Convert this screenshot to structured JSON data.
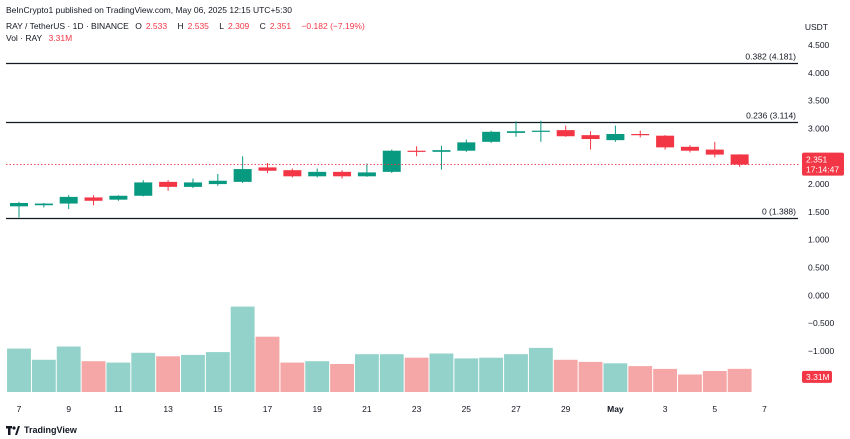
{
  "header": {
    "publisher_line": "BeInCrypto1 published on TradingView.com, May 06, 2025 12:15 UTC+5:30"
  },
  "legend": {
    "symbol": "RAY / TetherUS · 1D · BINANCE",
    "open_label": "O",
    "open_value": "2.533",
    "high_label": "H",
    "high_value": "2.535",
    "low_label": "L",
    "low_value": "2.309",
    "close_label": "C",
    "close_value": "2.351",
    "change": "−0.182 (−7.19%)",
    "vol_label": "Vol · RAY",
    "vol_value": "3.31M"
  },
  "currency": "USDT",
  "footer": {
    "brand": "TradingView"
  },
  "colors": {
    "up": "#089981",
    "down": "#f23645",
    "vol_up": "#92d2cb",
    "vol_down": "#f5a6a6",
    "fib_line": "#131722",
    "price_line": "#f23645"
  },
  "chart_data": {
    "type": "candlestick",
    "title": "RAY / TetherUS · 1D · BINANCE",
    "x_tick_labels": [
      "7",
      "9",
      "11",
      "13",
      "15",
      "17",
      "19",
      "21",
      "23",
      "25",
      "27",
      "29",
      "May",
      "3",
      "5",
      "7"
    ],
    "y_tick_labels": [
      "4.500",
      "4.000",
      "3.500",
      "3.000",
      "2.500",
      "2.000",
      "1.500",
      "1.000",
      "0.500",
      "0.000",
      "−0.500",
      "−1.000"
    ],
    "y_ticks": [
      4.5,
      4.0,
      3.5,
      3.0,
      2.5,
      2.0,
      1.5,
      1.0,
      0.5,
      0.0,
      -0.5,
      -1.0
    ],
    "ylim": [
      -1.85,
      4.8
    ],
    "fib_levels": [
      {
        "label": "0.382 (4.181)",
        "value": 4.181
      },
      {
        "label": "0.236 (3.114)",
        "value": 3.114
      },
      {
        "label": "0 (1.388)",
        "value": 1.388
      }
    ],
    "candles": [
      {
        "date": "Apr 7",
        "o": 1.6,
        "h": 1.68,
        "l": 1.4,
        "c": 1.66
      },
      {
        "date": "Apr 8",
        "o": 1.62,
        "h": 1.66,
        "l": 1.58,
        "c": 1.65
      },
      {
        "date": "Apr 9",
        "o": 1.65,
        "h": 1.8,
        "l": 1.55,
        "c": 1.77
      },
      {
        "date": "Apr 10",
        "o": 1.76,
        "h": 1.8,
        "l": 1.62,
        "c": 1.7
      },
      {
        "date": "Apr 11",
        "o": 1.72,
        "h": 1.8,
        "l": 1.7,
        "c": 1.79
      },
      {
        "date": "Apr 12",
        "o": 1.79,
        "h": 2.07,
        "l": 1.78,
        "c": 2.03
      },
      {
        "date": "Apr 13",
        "o": 2.04,
        "h": 2.07,
        "l": 1.88,
        "c": 1.95
      },
      {
        "date": "Apr 14",
        "o": 1.95,
        "h": 2.1,
        "l": 1.93,
        "c": 2.03
      },
      {
        "date": "Apr 15",
        "o": 2.0,
        "h": 2.18,
        "l": 1.97,
        "c": 2.06
      },
      {
        "date": "Apr 16",
        "o": 2.04,
        "h": 2.5,
        "l": 2.02,
        "c": 2.27
      },
      {
        "date": "Apr 17",
        "o": 2.3,
        "h": 2.38,
        "l": 2.2,
        "c": 2.24
      },
      {
        "date": "Apr 18",
        "o": 2.25,
        "h": 2.28,
        "l": 2.12,
        "c": 2.14
      },
      {
        "date": "Apr 19",
        "o": 2.14,
        "h": 2.28,
        "l": 2.12,
        "c": 2.22
      },
      {
        "date": "Apr 20",
        "o": 2.22,
        "h": 2.25,
        "l": 2.1,
        "c": 2.14
      },
      {
        "date": "Apr 21",
        "o": 2.14,
        "h": 2.37,
        "l": 2.13,
        "c": 2.21
      },
      {
        "date": "Apr 22",
        "o": 2.22,
        "h": 2.62,
        "l": 2.2,
        "c": 2.6
      },
      {
        "date": "Apr 23",
        "o": 2.6,
        "h": 2.68,
        "l": 2.5,
        "c": 2.58
      },
      {
        "date": "Apr 24",
        "o": 2.58,
        "h": 2.69,
        "l": 2.26,
        "c": 2.61
      },
      {
        "date": "Apr 25",
        "o": 2.6,
        "h": 2.8,
        "l": 2.58,
        "c": 2.75
      },
      {
        "date": "Apr 26",
        "o": 2.76,
        "h": 2.96,
        "l": 2.74,
        "c": 2.94
      },
      {
        "date": "Apr 27",
        "o": 2.92,
        "h": 3.13,
        "l": 2.85,
        "c": 2.95
      },
      {
        "date": "Apr 28",
        "o": 2.94,
        "h": 3.14,
        "l": 2.76,
        "c": 2.96
      },
      {
        "date": "Apr 29",
        "o": 2.97,
        "h": 3.05,
        "l": 2.85,
        "c": 2.86
      },
      {
        "date": "Apr 30",
        "o": 2.88,
        "h": 2.95,
        "l": 2.62,
        "c": 2.81
      },
      {
        "date": "May 1",
        "o": 2.79,
        "h": 3.05,
        "l": 2.76,
        "c": 2.9
      },
      {
        "date": "May 2",
        "o": 2.9,
        "h": 2.96,
        "l": 2.84,
        "c": 2.89
      },
      {
        "date": "May 3",
        "o": 2.87,
        "h": 2.88,
        "l": 2.62,
        "c": 2.66
      },
      {
        "date": "May 4",
        "o": 2.67,
        "h": 2.7,
        "l": 2.57,
        "c": 2.6
      },
      {
        "date": "May 5",
        "o": 2.62,
        "h": 2.76,
        "l": 2.48,
        "c": 2.53
      },
      {
        "date": "May 6",
        "o": 2.533,
        "h": 2.535,
        "l": 2.309,
        "c": 2.351
      }
    ],
    "volume_millions": [
      6.2,
      4.6,
      6.5,
      4.4,
      4.2,
      5.6,
      5.1,
      5.3,
      5.7,
      12.2,
      7.9,
      4.2,
      4.4,
      4.0,
      5.4,
      5.4,
      4.9,
      5.5,
      4.8,
      4.9,
      5.4,
      6.3,
      4.6,
      4.3,
      4.1,
      3.7,
      3.3,
      2.5,
      3.0,
      3.31
    ],
    "last_price_badge": {
      "price": "2.351",
      "countdown": "17:14:47"
    },
    "volume_badge": "3.31M"
  }
}
